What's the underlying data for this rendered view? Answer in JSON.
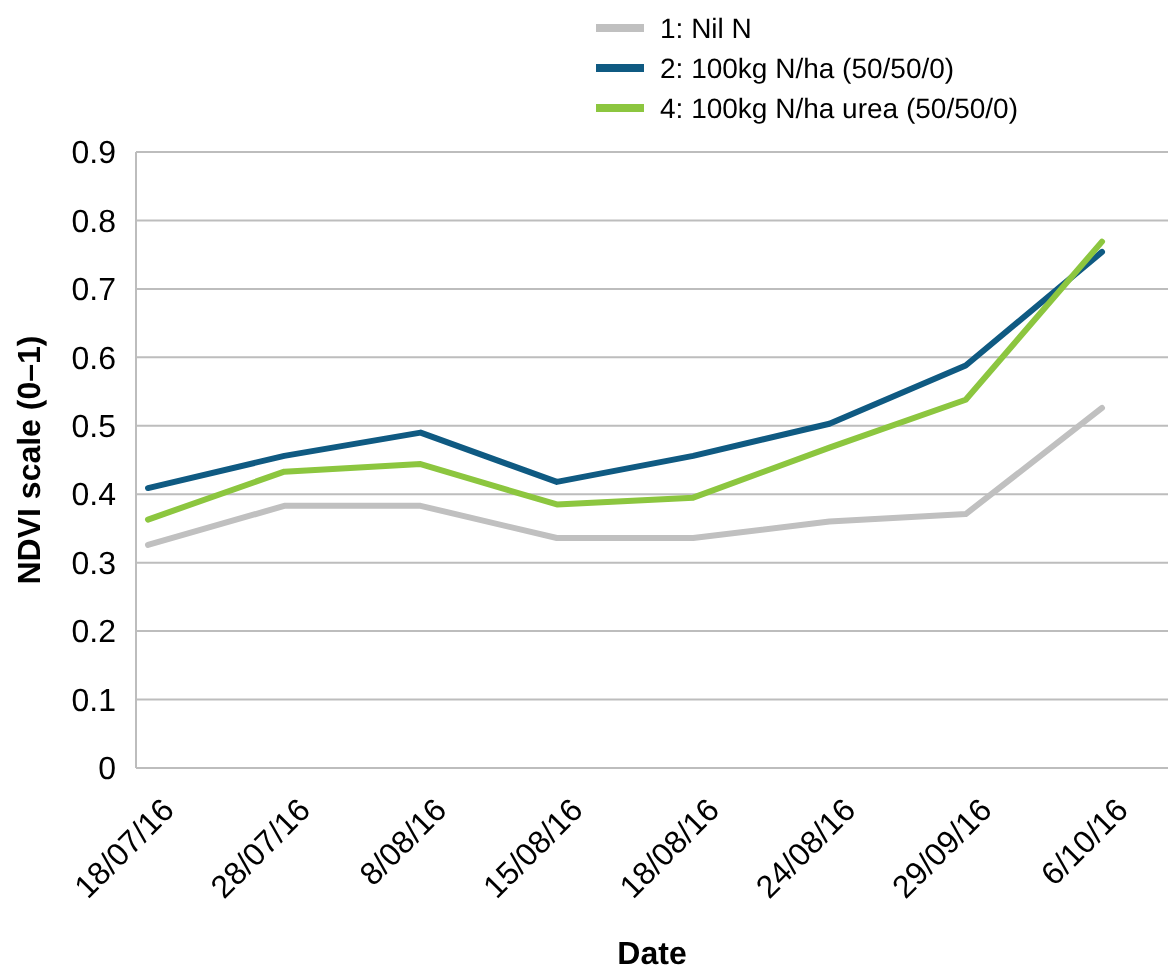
{
  "chart_data": {
    "type": "line",
    "xlabel": "Date",
    "ylabel": "NDVI scale (0–1)",
    "categories": [
      "18/07/16",
      "28/07/16",
      "8/08/16",
      "15/08/16",
      "18/08/16",
      "24/08/16",
      "29/09/16",
      "6/10/16"
    ],
    "series": [
      {
        "name": "1: Nil N",
        "color": "#c0c0c0",
        "values": [
          0.326,
          0.383,
          0.383,
          0.336,
          0.336,
          0.36,
          0.371,
          0.526
        ]
      },
      {
        "name": "2: 100kg N/ha (50/50/0)",
        "color": "#0f5a82",
        "values": [
          0.409,
          0.456,
          0.49,
          0.418,
          0.456,
          0.503,
          0.588,
          0.754
        ]
      },
      {
        "name": "4: 100kg N/ha urea (50/50/0)",
        "color": "#8cc63f",
        "values": [
          0.363,
          0.433,
          0.444,
          0.385,
          0.395,
          0.468,
          0.538,
          0.769
        ]
      }
    ],
    "ylim": [
      0,
      0.9
    ],
    "yticks": [
      0,
      0.1,
      0.2,
      0.3,
      0.4,
      0.5,
      0.6,
      0.7,
      0.8,
      0.9
    ],
    "grid": "y",
    "legend": "top right",
    "marker": "none",
    "line_style": "solid"
  }
}
